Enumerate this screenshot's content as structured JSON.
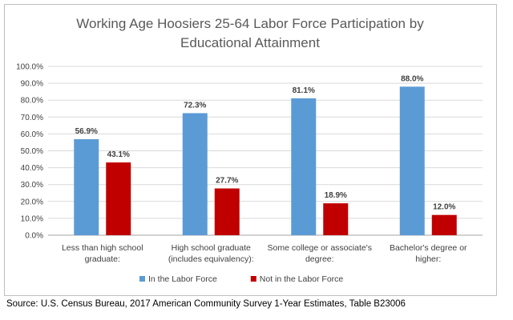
{
  "chart_data": {
    "type": "bar",
    "title": [
      "Working Age Hoosiers 25-64 Labor Force Participation by",
      "Educational Attainment"
    ],
    "categories": [
      [
        "Less than high school",
        "graduate:"
      ],
      [
        "High school graduate",
        "(includes equivalency):"
      ],
      [
        "Some college or associate's",
        "degree:"
      ],
      [
        "Bachelor's degree or",
        "higher:"
      ]
    ],
    "series": [
      {
        "name": "In the Labor Force",
        "color": "#5b9bd5",
        "values": [
          56.9,
          72.3,
          81.1,
          88.0
        ],
        "labels": [
          "56.9%",
          "72.3%",
          "81.1%",
          "88.0%"
        ]
      },
      {
        "name": "Not in the Labor Force",
        "color": "#c00000",
        "values": [
          43.1,
          27.7,
          18.9,
          12.0
        ],
        "labels": [
          "43.1%",
          "27.7%",
          "18.9%",
          "12.0%"
        ]
      }
    ],
    "ylim": [
      0,
      100
    ],
    "yticks": [
      "0.0%",
      "10.0%",
      "20.0%",
      "30.0%",
      "40.0%",
      "50.0%",
      "60.0%",
      "70.0%",
      "80.0%",
      "90.0%",
      "100.0%"
    ],
    "grid": true,
    "legend_position": "bottom",
    "xlabel": "",
    "ylabel": ""
  },
  "source": "Source: U.S. Census Bureau, 2017 American Community Survey 1-Year Estimates, Table B23006"
}
